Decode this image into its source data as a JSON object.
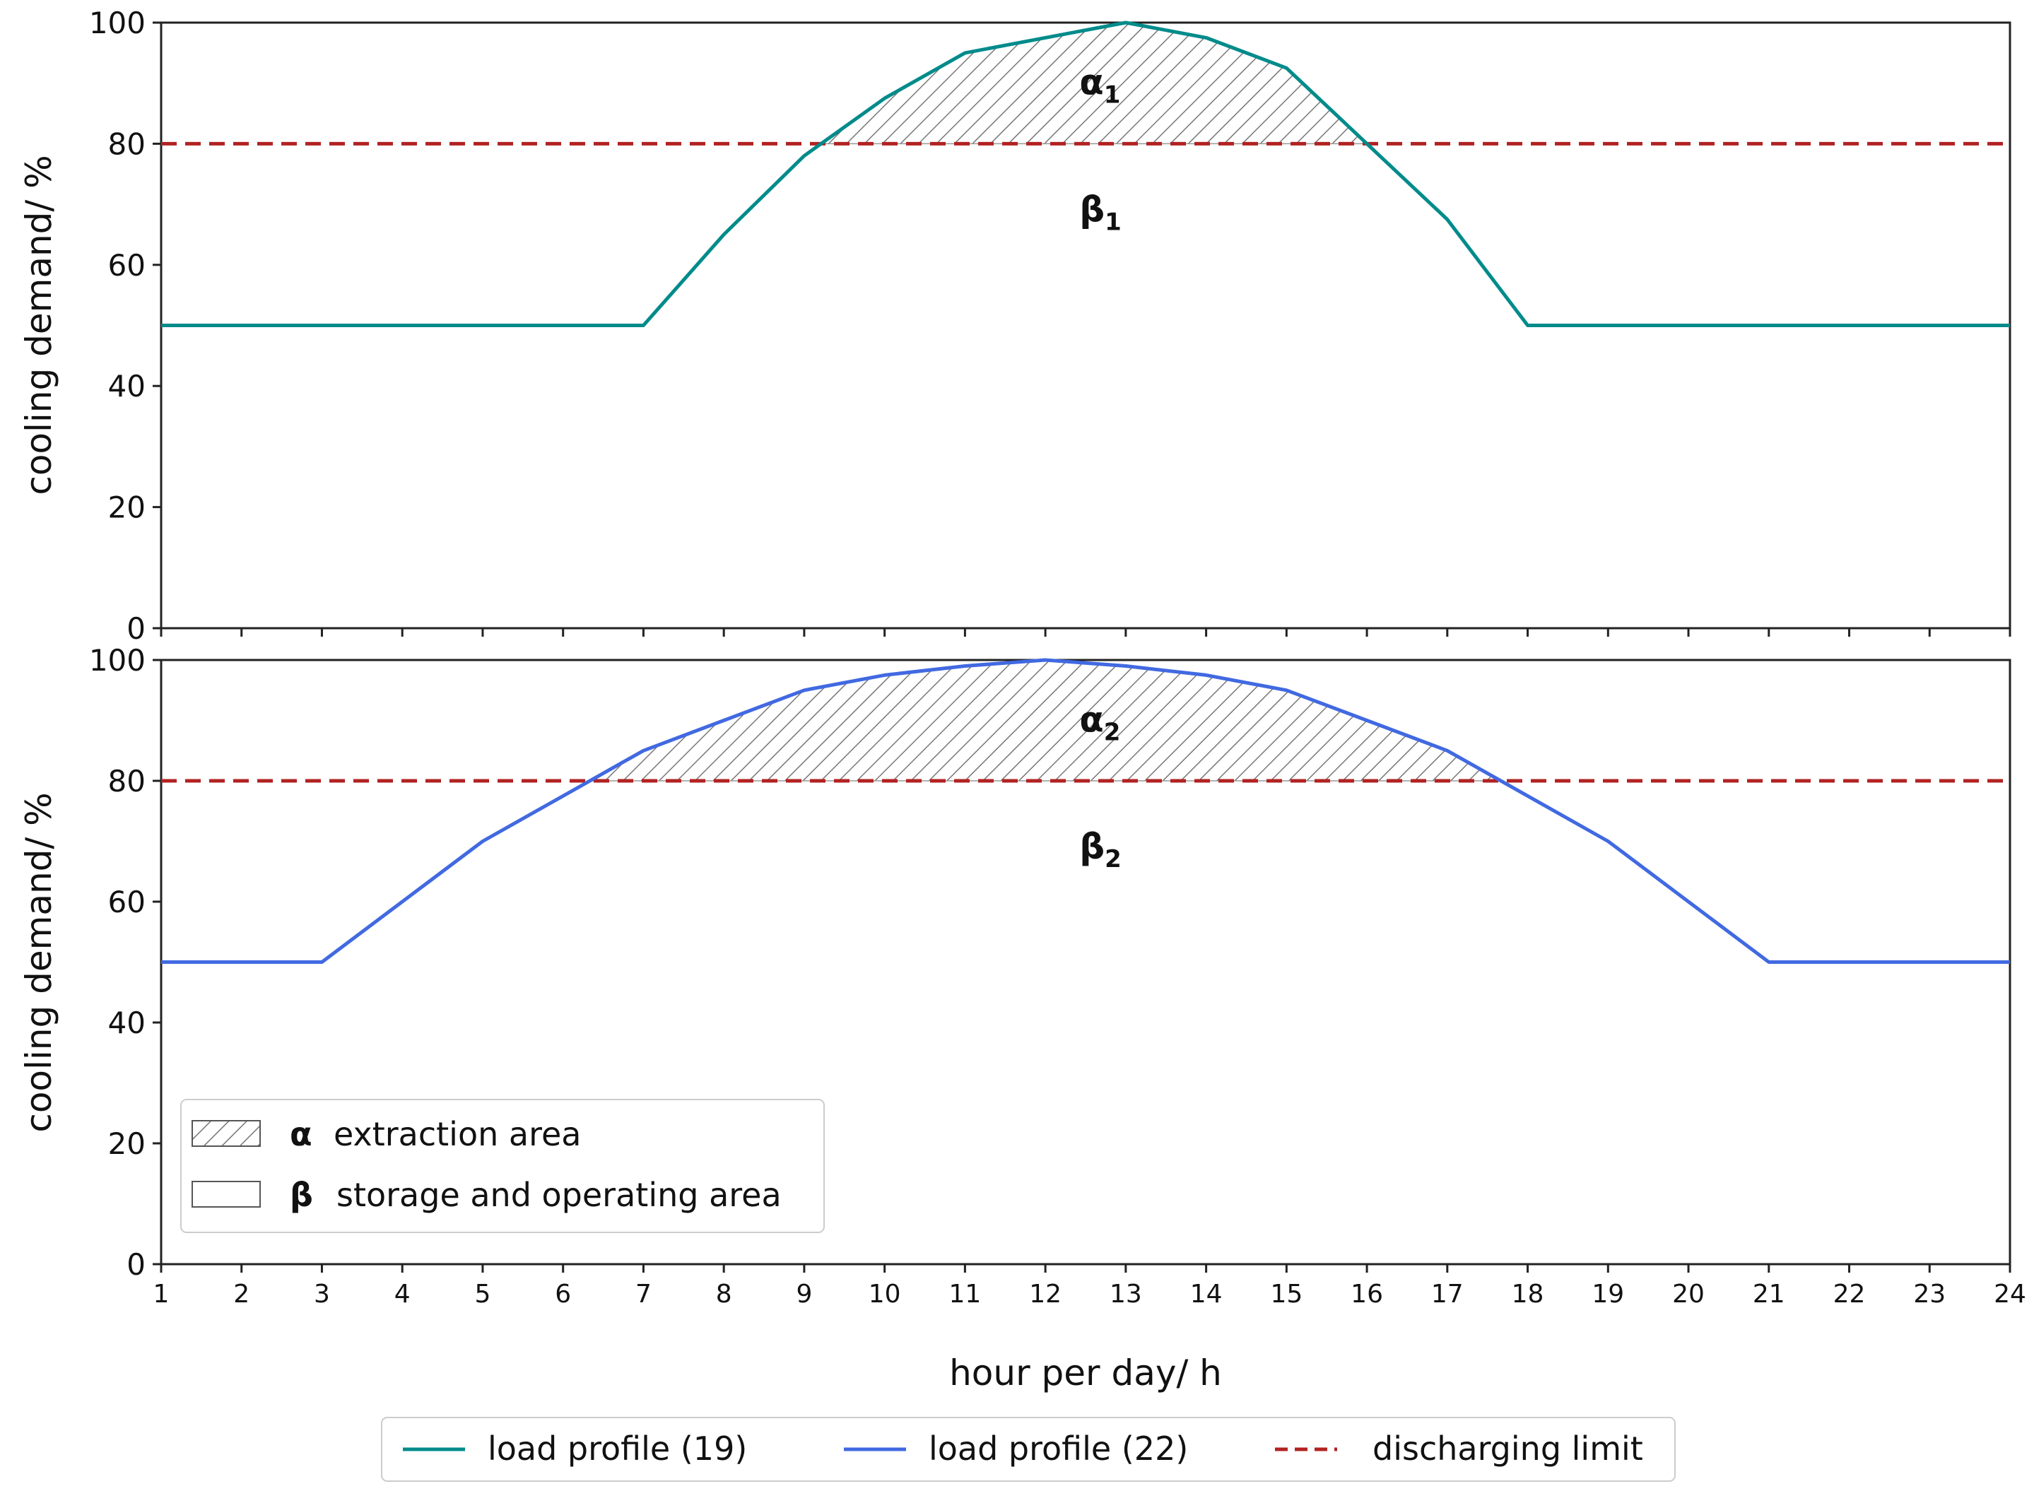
{
  "chart_data": {
    "type": "line",
    "colors": {
      "teal": "#008B8B",
      "blue": "#4169E1",
      "limit": "#B22222",
      "hatch": "#777777"
    },
    "xlabel": "hour per day/ h",
    "x_ticks": [
      1,
      2,
      3,
      4,
      5,
      6,
      7,
      8,
      9,
      10,
      11,
      12,
      13,
      14,
      15,
      16,
      17,
      18,
      19,
      20,
      21,
      22,
      23,
      24
    ],
    "xlim": [
      1,
      24
    ],
    "legend": {
      "items": [
        {
          "label": "load profile (19)",
          "color": "#008B8B",
          "style": "solid"
        },
        {
          "label": "load profile (22)",
          "color": "#4169E1",
          "style": "solid"
        },
        {
          "label": "discharging limit",
          "color": "#B22222",
          "style": "dashed"
        }
      ]
    },
    "area_legend": {
      "items": [
        {
          "symbol": "α",
          "label": "extraction area",
          "hatched": true
        },
        {
          "symbol": "β",
          "label": "storage and operating area",
          "hatched": false
        }
      ]
    },
    "panels": [
      {
        "ylabel": "cooling demand/ %",
        "ylim": [
          0,
          100
        ],
        "y_ticks": [
          0,
          20,
          40,
          60,
          80,
          100
        ],
        "series": {
          "name": "load profile (19)",
          "color": "#008B8B",
          "x": [
            1,
            7,
            8,
            9,
            10,
            11,
            12,
            13,
            14,
            15,
            16,
            17,
            18,
            24
          ],
          "y": [
            50,
            50,
            65,
            78,
            87.5,
            95,
            97.5,
            100,
            97.5,
            92.5,
            80,
            67.5,
            50,
            50
          ]
        },
        "limit": 80,
        "alpha_label": {
          "symbol": "α",
          "sub": "1",
          "x": 12.6,
          "y": 90
        },
        "beta_label": {
          "symbol": "β",
          "sub": "1",
          "x": 12.6,
          "y": 69
        }
      },
      {
        "ylabel": "cooling demand/ %",
        "ylim": [
          0,
          100
        ],
        "y_ticks": [
          0,
          20,
          40,
          60,
          80,
          100
        ],
        "series": {
          "name": "load profile (22)",
          "color": "#4169E1",
          "x": [
            1,
            3,
            4,
            5,
            6,
            7,
            8,
            9,
            10,
            11,
            12,
            13,
            14,
            15,
            16,
            17,
            18,
            19,
            20,
            21,
            24
          ],
          "y": [
            50,
            50,
            60,
            70,
            77.5,
            85,
            90,
            95,
            97.5,
            99,
            100,
            99,
            97.5,
            95,
            90,
            85,
            77.5,
            70,
            60,
            50,
            50
          ]
        },
        "limit": 80,
        "alpha_label": {
          "symbol": "α",
          "sub": "2",
          "x": 12.6,
          "y": 90
        },
        "beta_label": {
          "symbol": "β",
          "sub": "2",
          "x": 12.6,
          "y": 69
        }
      }
    ]
  }
}
